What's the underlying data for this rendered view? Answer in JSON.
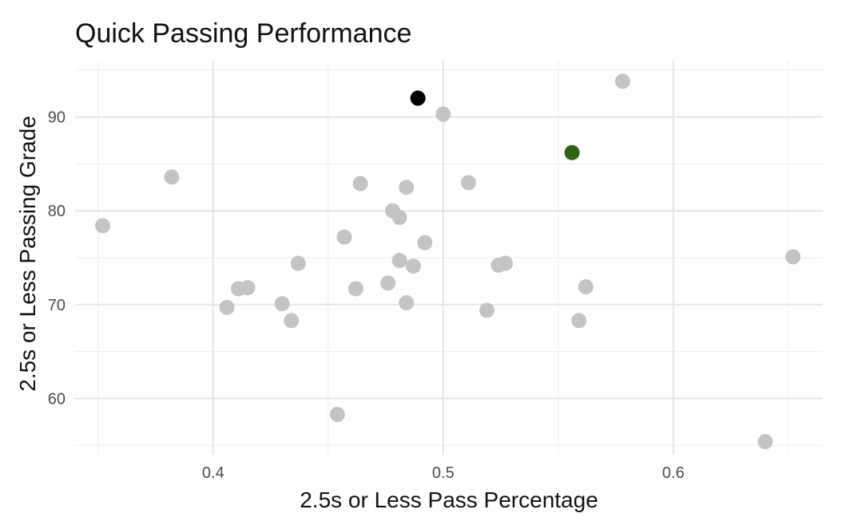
{
  "chart_data": {
    "type": "scatter",
    "title": "Quick Passing Performance",
    "xlabel": "2.5s or Less Pass Percentage",
    "ylabel": "2.5s or Less Passing Grade",
    "xlim": [
      0.34,
      0.665
    ],
    "ylim": [
      54,
      96
    ],
    "x_ticks": [
      0.4,
      0.5,
      0.6
    ],
    "x_tick_labels": [
      "0.4",
      "0.5",
      "0.6"
    ],
    "y_ticks": [
      60,
      70,
      80,
      90
    ],
    "y_tick_labels": [
      "60",
      "70",
      "80",
      "90"
    ],
    "grid": true,
    "legend": false,
    "colors": {
      "default": "#c4c4c4",
      "highlight_black": "#000000",
      "highlight_green": "#2e6318"
    },
    "points": [
      {
        "x": 0.352,
        "y": 78.4,
        "color": "default"
      },
      {
        "x": 0.382,
        "y": 83.6,
        "color": "default"
      },
      {
        "x": 0.406,
        "y": 69.7,
        "color": "default"
      },
      {
        "x": 0.411,
        "y": 71.7,
        "color": "default"
      },
      {
        "x": 0.415,
        "y": 71.8,
        "color": "default"
      },
      {
        "x": 0.43,
        "y": 70.1,
        "color": "default"
      },
      {
        "x": 0.434,
        "y": 68.3,
        "color": "default"
      },
      {
        "x": 0.437,
        "y": 74.4,
        "color": "default"
      },
      {
        "x": 0.454,
        "y": 58.3,
        "color": "default"
      },
      {
        "x": 0.457,
        "y": 77.2,
        "color": "default"
      },
      {
        "x": 0.462,
        "y": 71.7,
        "color": "default"
      },
      {
        "x": 0.464,
        "y": 82.9,
        "color": "default"
      },
      {
        "x": 0.476,
        "y": 72.3,
        "color": "default"
      },
      {
        "x": 0.478,
        "y": 80.0,
        "color": "default"
      },
      {
        "x": 0.481,
        "y": 74.7,
        "color": "default"
      },
      {
        "x": 0.481,
        "y": 79.3,
        "color": "default"
      },
      {
        "x": 0.484,
        "y": 82.5,
        "color": "default"
      },
      {
        "x": 0.484,
        "y": 70.2,
        "color": "default"
      },
      {
        "x": 0.487,
        "y": 74.1,
        "color": "default"
      },
      {
        "x": 0.489,
        "y": 92.0,
        "color": "highlight_black"
      },
      {
        "x": 0.492,
        "y": 76.6,
        "color": "default"
      },
      {
        "x": 0.5,
        "y": 90.3,
        "color": "default"
      },
      {
        "x": 0.511,
        "y": 83.0,
        "color": "default"
      },
      {
        "x": 0.519,
        "y": 69.4,
        "color": "default"
      },
      {
        "x": 0.524,
        "y": 74.2,
        "color": "default"
      },
      {
        "x": 0.527,
        "y": 74.4,
        "color": "default"
      },
      {
        "x": 0.556,
        "y": 86.2,
        "color": "highlight_green"
      },
      {
        "x": 0.559,
        "y": 68.3,
        "color": "default"
      },
      {
        "x": 0.562,
        "y": 71.9,
        "color": "default"
      },
      {
        "x": 0.578,
        "y": 93.8,
        "color": "default"
      },
      {
        "x": 0.64,
        "y": 55.4,
        "color": "default"
      },
      {
        "x": 0.652,
        "y": 75.1,
        "color": "default"
      }
    ]
  }
}
